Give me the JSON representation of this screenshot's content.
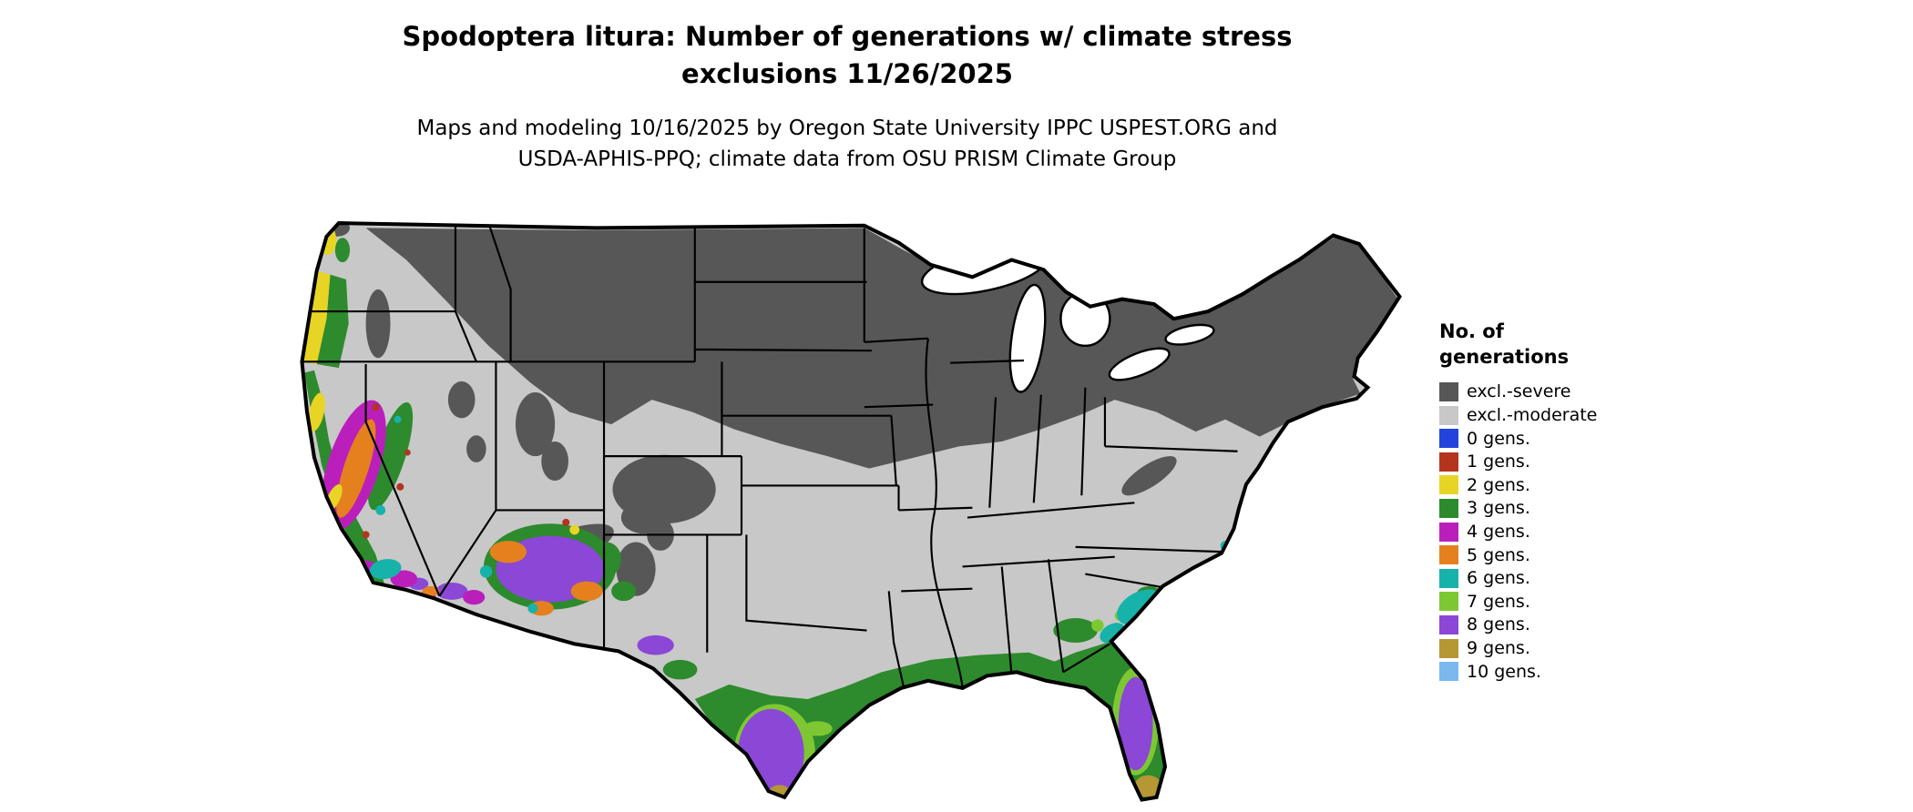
{
  "header": {
    "title_line1": "Spodoptera litura: Number of generations w/ climate stress",
    "title_line2": "exclusions 11/26/2025",
    "subtitle_line1": "Maps and modeling 10/16/2025 by Oregon State University IPPC USPEST.ORG and",
    "subtitle_line2": "USDA-APHIS-PPQ; climate data from OSU PRISM Climate Group"
  },
  "legend": {
    "title_line1": "No. of",
    "title_line2": "generations",
    "items": [
      {
        "label": "excl.-severe",
        "color": "#575757"
      },
      {
        "label": "excl.-moderate",
        "color": "#c8c8c8"
      },
      {
        "label": "0 gens.",
        "color": "#2244dd"
      },
      {
        "label": "1 gens.",
        "color": "#b5341f"
      },
      {
        "label": "2 gens.",
        "color": "#e8d424"
      },
      {
        "label": "3 gens.",
        "color": "#2d8a2d"
      },
      {
        "label": "4 gens.",
        "color": "#bb1fbb"
      },
      {
        "label": "5 gens.",
        "color": "#e5801f"
      },
      {
        "label": "6 gens.",
        "color": "#17b2aa"
      },
      {
        "label": "7 gens.",
        "color": "#7dc832"
      },
      {
        "label": "8 gens.",
        "color": "#8b47d6"
      },
      {
        "label": "9 gens.",
        "color": "#b59733"
      },
      {
        "label": "10 gens.",
        "color": "#7ab8ee"
      }
    ]
  },
  "map": {
    "outline_color": "#000000",
    "water_color": "#ffffff"
  }
}
